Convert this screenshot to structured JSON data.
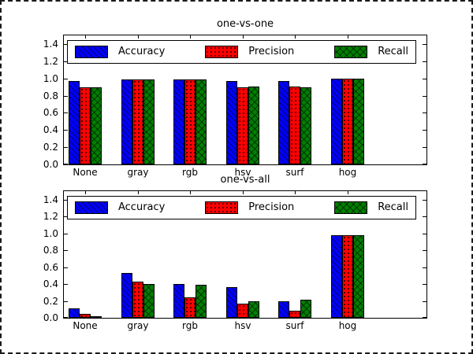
{
  "figure": {
    "background": "#ffffff",
    "border_color": "#000000",
    "axes_edge_color": "#000000"
  },
  "chart_data": [
    {
      "type": "bar",
      "title": "one-vs-one",
      "categories": [
        "None",
        "gray",
        "rgb",
        "hsv",
        "surf",
        "hog"
      ],
      "series": [
        {
          "name": "Accuracy",
          "color": "#0000ff",
          "hatch": "\\",
          "values": [
            0.97,
            0.99,
            0.99,
            0.97,
            0.97,
            1.0
          ]
        },
        {
          "name": "Precision",
          "color": "#ff0000",
          "hatch": ".",
          "values": [
            0.9,
            0.99,
            0.99,
            0.9,
            0.91,
            1.0
          ]
        },
        {
          "name": "Recall",
          "color": "#007f00",
          "hatch": "x",
          "values": [
            0.9,
            0.99,
            0.99,
            0.91,
            0.9,
            1.0
          ]
        }
      ],
      "xlabel": "",
      "ylabel": "",
      "ylim": [
        0,
        1.5
      ],
      "yticks": [
        "0.0",
        "0.2",
        "0.4",
        "0.6",
        "0.8",
        "1.0",
        "1.2",
        "1.4"
      ],
      "grid": false,
      "legend": {
        "position": "upper center, full width, horizontal",
        "entries": [
          "Accuracy",
          "Precision",
          "Recall"
        ]
      }
    },
    {
      "type": "bar",
      "title": "one-vs-all",
      "categories": [
        "None",
        "gray",
        "rgb",
        "hsv",
        "surf",
        "hog"
      ],
      "series": [
        {
          "name": "Accuracy",
          "color": "#0000ff",
          "hatch": "\\",
          "values": [
            0.11,
            0.53,
            0.4,
            0.36,
            0.2,
            0.98
          ]
        },
        {
          "name": "Precision",
          "color": "#ff0000",
          "hatch": ".",
          "values": [
            0.05,
            0.43,
            0.24,
            0.17,
            0.08,
            0.98
          ]
        },
        {
          "name": "Recall",
          "color": "#007f00",
          "hatch": "x",
          "values": [
            0.01,
            0.4,
            0.39,
            0.2,
            0.21,
            0.98
          ]
        }
      ],
      "xlabel": "",
      "ylabel": "",
      "ylim": [
        0,
        1.5
      ],
      "yticks": [
        "0.0",
        "0.2",
        "0.4",
        "0.6",
        "0.8",
        "1.0",
        "1.2",
        "1.4"
      ],
      "grid": false,
      "legend": {
        "position": "upper center, full width, horizontal",
        "entries": [
          "Accuracy",
          "Precision",
          "Recall"
        ]
      }
    }
  ]
}
